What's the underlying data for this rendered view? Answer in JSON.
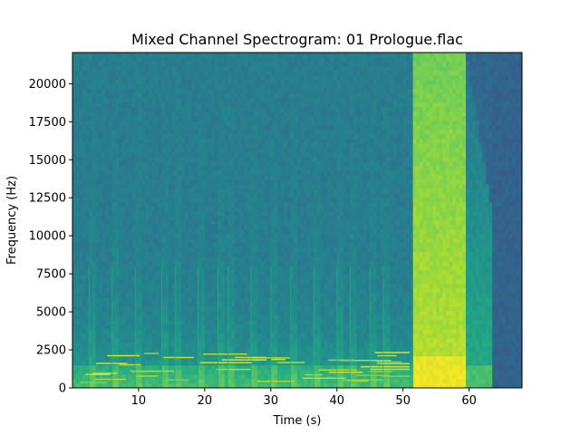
{
  "chart_data": {
    "type": "heatmap",
    "subtype": "spectrogram",
    "title": "Mixed Channel Spectrogram: 01 Prologue.flac",
    "xlabel": "Time (s)",
    "ylabel": "Frequency (Hz)",
    "xlim": [
      0,
      68
    ],
    "ylim": [
      0,
      22050
    ],
    "xticks": [
      10,
      20,
      30,
      40,
      50,
      60
    ],
    "xtick_labels": [
      "10",
      "20",
      "30",
      "40",
      "50",
      "60"
    ],
    "yticks": [
      0,
      2500,
      5000,
      7500,
      10000,
      12500,
      15000,
      17500,
      20000
    ],
    "ytick_labels": [
      "0",
      "2500",
      "5000",
      "7500",
      "10000",
      "12500",
      "15000",
      "17500",
      "20000"
    ],
    "colormap": "viridis",
    "grid": false,
    "regions": [
      {
        "t_start": 0,
        "t_end": 51.5,
        "description": "music with harmonic bands concentrated below ~2500 Hz and vertical note onsets"
      },
      {
        "t_start": 51.5,
        "t_end": 59.5,
        "description": "broadband high-energy section spanning full frequency range"
      },
      {
        "t_start": 59.5,
        "t_end": 68,
        "description": "decaying tail with energy rolling off above ~10000 Hz"
      }
    ],
    "note_onsets_s": [
      2.5,
      6,
      9.5,
      13.5,
      15.5,
      19,
      22,
      23.5,
      27,
      30,
      33,
      36.5,
      40,
      42,
      45,
      47,
      51.5
    ]
  }
}
